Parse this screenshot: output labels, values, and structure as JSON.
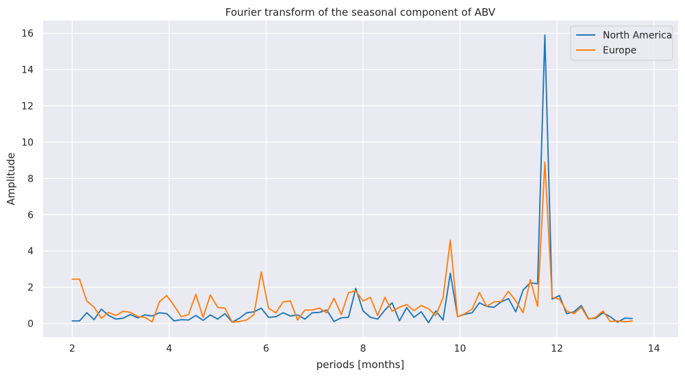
{
  "chart_data": {
    "type": "line",
    "title": "Fourier transform of the seasonal component of ABV",
    "xlabel": "periods [months]",
    "ylabel": "Amplitude",
    "xlim": [
      1.4,
      14.5
    ],
    "ylim": [
      -0.75,
      16.7
    ],
    "xticks": [
      2,
      4,
      6,
      8,
      10,
      12,
      14
    ],
    "yticks": [
      0,
      2,
      4,
      6,
      8,
      10,
      12,
      14,
      16
    ],
    "grid": true,
    "legend_position": "top-right",
    "series": [
      {
        "name": "North America",
        "color": "#1f77b4",
        "points": [
          [
            2.0,
            0.15
          ],
          [
            2.15,
            0.15
          ],
          [
            2.3,
            0.6
          ],
          [
            2.45,
            0.22
          ],
          [
            2.6,
            0.8
          ],
          [
            2.75,
            0.45
          ],
          [
            2.9,
            0.25
          ],
          [
            3.05,
            0.3
          ],
          [
            3.2,
            0.5
          ],
          [
            3.35,
            0.32
          ],
          [
            3.5,
            0.48
          ],
          [
            3.65,
            0.42
          ],
          [
            3.8,
            0.6
          ],
          [
            3.95,
            0.55
          ],
          [
            4.1,
            0.15
          ],
          [
            4.25,
            0.22
          ],
          [
            4.4,
            0.2
          ],
          [
            4.55,
            0.45
          ],
          [
            4.7,
            0.18
          ],
          [
            4.85,
            0.48
          ],
          [
            5.0,
            0.25
          ],
          [
            5.15,
            0.55
          ],
          [
            5.3,
            0.08
          ],
          [
            5.45,
            0.3
          ],
          [
            5.6,
            0.6
          ],
          [
            5.75,
            0.65
          ],
          [
            5.9,
            0.85
          ],
          [
            6.05,
            0.35
          ],
          [
            6.2,
            0.38
          ],
          [
            6.35,
            0.6
          ],
          [
            6.5,
            0.42
          ],
          [
            6.65,
            0.48
          ],
          [
            6.8,
            0.25
          ],
          [
            6.95,
            0.6
          ],
          [
            7.1,
            0.62
          ],
          [
            7.25,
            0.75
          ],
          [
            7.4,
            0.12
          ],
          [
            7.55,
            0.32
          ],
          [
            7.7,
            0.35
          ],
          [
            7.85,
            1.95
          ],
          [
            8.0,
            0.7
          ],
          [
            8.15,
            0.35
          ],
          [
            8.3,
            0.25
          ],
          [
            8.45,
            0.75
          ],
          [
            8.6,
            1.15
          ],
          [
            8.75,
            0.15
          ],
          [
            8.9,
            0.88
          ],
          [
            9.05,
            0.35
          ],
          [
            9.2,
            0.65
          ],
          [
            9.35,
            0.05
          ],
          [
            9.5,
            0.7
          ],
          [
            9.65,
            0.2
          ],
          [
            9.8,
            2.78
          ],
          [
            9.95,
            0.38
          ],
          [
            10.1,
            0.52
          ],
          [
            10.25,
            0.6
          ],
          [
            10.4,
            1.15
          ],
          [
            10.55,
            0.95
          ],
          [
            10.7,
            0.9
          ],
          [
            10.85,
            1.2
          ],
          [
            11.0,
            1.38
          ],
          [
            11.15,
            0.65
          ],
          [
            11.3,
            1.85
          ],
          [
            11.45,
            2.25
          ],
          [
            11.6,
            2.2
          ],
          [
            11.75,
            15.9
          ],
          [
            11.9,
            1.35
          ],
          [
            12.05,
            1.55
          ],
          [
            12.2,
            0.55
          ],
          [
            12.35,
            0.65
          ],
          [
            12.5,
            1.0
          ],
          [
            12.65,
            0.28
          ],
          [
            12.8,
            0.3
          ],
          [
            12.95,
            0.6
          ],
          [
            13.1,
            0.38
          ],
          [
            13.25,
            0.08
          ],
          [
            13.4,
            0.3
          ],
          [
            13.55,
            0.28
          ]
        ]
      },
      {
        "name": "Europe",
        "color": "#ff7f0e",
        "points": [
          [
            2.0,
            2.45
          ],
          [
            2.15,
            2.45
          ],
          [
            2.3,
            1.25
          ],
          [
            2.45,
            0.9
          ],
          [
            2.6,
            0.3
          ],
          [
            2.75,
            0.62
          ],
          [
            2.9,
            0.45
          ],
          [
            3.05,
            0.68
          ],
          [
            3.2,
            0.62
          ],
          [
            3.35,
            0.4
          ],
          [
            3.5,
            0.35
          ],
          [
            3.65,
            0.1
          ],
          [
            3.8,
            1.2
          ],
          [
            3.95,
            1.55
          ],
          [
            4.1,
            1.0
          ],
          [
            4.25,
            0.38
          ],
          [
            4.4,
            0.5
          ],
          [
            4.55,
            1.62
          ],
          [
            4.7,
            0.35
          ],
          [
            4.85,
            1.58
          ],
          [
            5.0,
            0.9
          ],
          [
            5.15,
            0.85
          ],
          [
            5.3,
            0.08
          ],
          [
            5.45,
            0.12
          ],
          [
            5.6,
            0.2
          ],
          [
            5.75,
            0.5
          ],
          [
            5.9,
            2.85
          ],
          [
            6.05,
            0.85
          ],
          [
            6.2,
            0.6
          ],
          [
            6.35,
            1.2
          ],
          [
            6.5,
            1.25
          ],
          [
            6.65,
            0.2
          ],
          [
            6.8,
            0.75
          ],
          [
            6.95,
            0.75
          ],
          [
            7.1,
            0.85
          ],
          [
            7.25,
            0.6
          ],
          [
            7.4,
            1.4
          ],
          [
            7.55,
            0.5
          ],
          [
            7.7,
            1.7
          ],
          [
            7.85,
            1.8
          ],
          [
            8.0,
            1.25
          ],
          [
            8.15,
            1.45
          ],
          [
            8.3,
            0.45
          ],
          [
            8.45,
            1.45
          ],
          [
            8.6,
            0.68
          ],
          [
            8.75,
            0.9
          ],
          [
            8.9,
            1.05
          ],
          [
            9.05,
            0.72
          ],
          [
            9.2,
            1.0
          ],
          [
            9.35,
            0.82
          ],
          [
            9.5,
            0.45
          ],
          [
            9.65,
            1.42
          ],
          [
            9.8,
            4.6
          ],
          [
            9.95,
            0.38
          ],
          [
            10.1,
            0.55
          ],
          [
            10.25,
            0.8
          ],
          [
            10.4,
            1.72
          ],
          [
            10.55,
            0.95
          ],
          [
            10.7,
            1.2
          ],
          [
            10.85,
            1.22
          ],
          [
            11.0,
            1.78
          ],
          [
            11.15,
            1.25
          ],
          [
            11.3,
            0.6
          ],
          [
            11.45,
            2.42
          ],
          [
            11.6,
            0.95
          ],
          [
            11.75,
            8.9
          ],
          [
            11.9,
            1.45
          ],
          [
            12.05,
            1.35
          ],
          [
            12.2,
            0.7
          ],
          [
            12.35,
            0.55
          ],
          [
            12.5,
            0.9
          ],
          [
            12.65,
            0.25
          ],
          [
            12.8,
            0.35
          ],
          [
            12.95,
            0.7
          ],
          [
            13.1,
            0.12
          ],
          [
            13.25,
            0.15
          ],
          [
            13.4,
            0.1
          ],
          [
            13.55,
            0.15
          ]
        ]
      }
    ]
  }
}
